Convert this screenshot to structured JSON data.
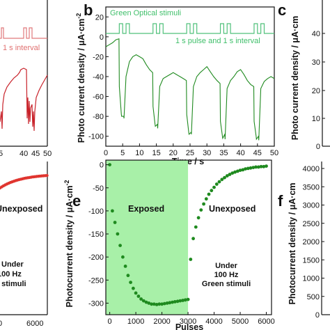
{
  "panels": {
    "b": "b",
    "c": "c",
    "e": "e",
    "f": "f"
  },
  "colors": {
    "red_series": "#c8222a",
    "red_light": "#e0797b",
    "green_series": "#1f8a1f",
    "green_light": "#4fc07a",
    "exposed_fill": "#a8f0a8"
  },
  "panel_a": {
    "annotation": "1 s interval",
    "x_ticks": [
      "5",
      "40",
      "45",
      "50"
    ]
  },
  "panel_b": {
    "legend_top": "Green Optical stimuli",
    "legend_bottom": "1 s pulse and 1 s interval",
    "ylabel_main": "Photo current density / μA·cm",
    "ylabel_sup": "-2",
    "xlabel": "Time / s"
  },
  "panel_c": {
    "ylabel_main": "Photo current density / μA·cm",
    "y_ticks": [
      "40",
      "30",
      "20",
      "10",
      "0"
    ]
  },
  "panel_d": {
    "label_unexposed": "Unexposed",
    "label_stim_line1": "Under",
    "label_stim_line2": "100 Hz",
    "label_stim_line3": "l stimuli",
    "x_ticks": [
      "0",
      "6000"
    ]
  },
  "panel_e": {
    "ylabel_main": "Photocurrent density / μA·cm",
    "ylabel_sup": "-2",
    "xlabel": "Pulses",
    "label_exposed": "Exposed",
    "label_unexposed": "Unexposed",
    "label_stim_line1": "Under",
    "label_stim_line2": "100 Hz",
    "label_stim_line3": "Green stimuli"
  },
  "panel_f": {
    "ylabel_main": "Photocurrent density / μA·cm",
    "y_ticks": [
      "4000",
      "3500",
      "3000",
      "2500",
      "2000",
      "1500",
      "1000",
      "500",
      "0"
    ]
  },
  "chart_data": [
    {
      "type": "line",
      "panel": "b",
      "x_axis": {
        "min": 0,
        "max": 50,
        "ticks": [
          0,
          5,
          10,
          15,
          20,
          25,
          30,
          35,
          40,
          45,
          50
        ]
      },
      "y_axis": {
        "min": -110,
        "max": 30,
        "ticks": [
          -100,
          -80,
          -60,
          -40,
          -20,
          0,
          20
        ]
      },
      "pulse_pairs_start_s": [
        4,
        14,
        24,
        34,
        44
      ],
      "series": [
        {
          "x": [
            0,
            1,
            2,
            3,
            3.9,
            4.0,
            4.6,
            4.7,
            5.3,
            5.4,
            6,
            7,
            8,
            9,
            10,
            11,
            12,
            13,
            13.9,
            14.0,
            14.6,
            14.7,
            15.3,
            15.4,
            16,
            17,
            18,
            19,
            20,
            21,
            22,
            23,
            23.9,
            24.0,
            24.6,
            24.7,
            25.3,
            25.4,
            26,
            27,
            28,
            29,
            30,
            31,
            32,
            33,
            33.9,
            34.0,
            34.6,
            34.7,
            35.3,
            35.4,
            36,
            37,
            38,
            39,
            40,
            41,
            42,
            43,
            43.9,
            44.0,
            44.6,
            44.7,
            45.3,
            45.4,
            46,
            47,
            48,
            49,
            50
          ],
          "y": [
            -10,
            -8,
            -6,
            -3,
            -2,
            -50,
            -78,
            -80,
            -80,
            -82,
            -40,
            -25,
            -20,
            -18,
            -20,
            -22,
            -28,
            -33,
            -36,
            -70,
            -88,
            -90,
            -88,
            -92,
            -50,
            -42,
            -40,
            -38,
            -36,
            -38,
            -40,
            -42,
            -44,
            -78,
            -96,
            -98,
            -96,
            -98,
            -50,
            -40,
            -36,
            -33,
            -30,
            -35,
            -40,
            -44,
            -47,
            -85,
            -100,
            -102,
            -98,
            -103,
            -52,
            -44,
            -40,
            -35,
            -33,
            -38,
            -44,
            -48,
            -50,
            -85,
            -100,
            -103,
            -100,
            -104,
            -52,
            -45,
            -42,
            -40,
            -42
          ]
        }
      ]
    },
    {
      "type": "scatter",
      "panel": "e",
      "xlabel": "Pulses",
      "x_axis": {
        "min": -150,
        "max": 6200,
        "ticks": [
          0,
          1000,
          2000,
          3000,
          4000,
          5000,
          6000
        ]
      },
      "y_axis": {
        "min": -325,
        "max": 10,
        "ticks": [
          -300,
          -250,
          -200,
          -150,
          -100,
          -50,
          0
        ]
      },
      "exposed_range": [
        0,
        3000
      ],
      "series": [
        {
          "x": [
            0,
            100,
            200,
            300,
            400,
            500,
            600,
            700,
            800,
            900,
            1000,
            1100,
            1200,
            1300,
            1400,
            1500,
            1600,
            1700,
            1800,
            1900,
            2000,
            2100,
            2200,
            2300,
            2400,
            2500,
            2600,
            2700,
            2800,
            2900,
            3000,
            3100,
            3200,
            3300,
            3400,
            3500,
            3600,
            3700,
            3800,
            3900,
            4000,
            4100,
            4200,
            4300,
            4400,
            4500,
            4600,
            4700,
            4800,
            4900,
            5000,
            5100,
            5200,
            5300,
            5400,
            5500,
            5600,
            5700,
            5800,
            5900,
            6000
          ],
          "y": [
            0,
            -100,
            -125,
            -150,
            -175,
            -200,
            -220,
            -240,
            -255,
            -268,
            -278,
            -285,
            -291,
            -295,
            -298,
            -300,
            -302,
            -302,
            -303,
            -302,
            -302,
            -301,
            -300,
            -299,
            -298,
            -297,
            -296,
            -295,
            -294,
            -293,
            -292,
            -205,
            -160,
            -135,
            -115,
            -98,
            -85,
            -74,
            -64,
            -56,
            -49,
            -42,
            -37,
            -32,
            -28,
            -24,
            -21,
            -18,
            -16,
            -14,
            -12,
            -11,
            -9,
            -8,
            -7,
            -6,
            -5,
            -5,
            -4,
            -4,
            -3
          ]
        }
      ]
    }
  ]
}
